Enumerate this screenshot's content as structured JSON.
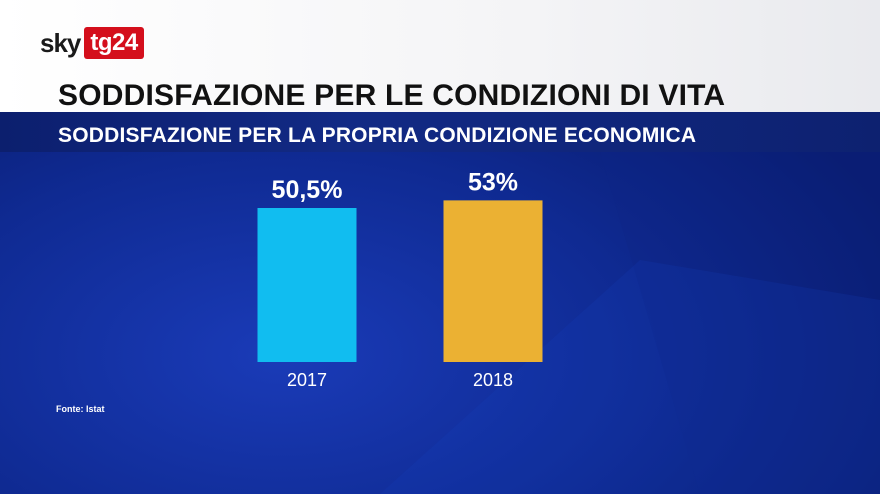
{
  "header": {
    "logo_brand": "sky",
    "logo_channel": "tg24",
    "title": "SODDISFAZIONE PER LE CONDIZIONI DI VITA",
    "subtitle": "SODDISFAZIONE PER LA PROPRIA CONDIZIONE ECONOMICA"
  },
  "footer": {
    "source": "Fonte: Istat"
  },
  "colors": {
    "bar_2017": "#11bdf0",
    "bar_2018": "#ebb133",
    "logo_red": "#d40f1c"
  },
  "chart_data": {
    "type": "bar",
    "categories": [
      "2017",
      "2018"
    ],
    "values": [
      50.5,
      53
    ],
    "value_labels": [
      "50,5%",
      "53%"
    ],
    "title": "SODDISFAZIONE PER LA PROPRIA CONDIZIONE ECONOMICA",
    "xlabel": "",
    "ylabel": "",
    "ylim": [
      0,
      60
    ],
    "grid": false,
    "legend": "none"
  }
}
